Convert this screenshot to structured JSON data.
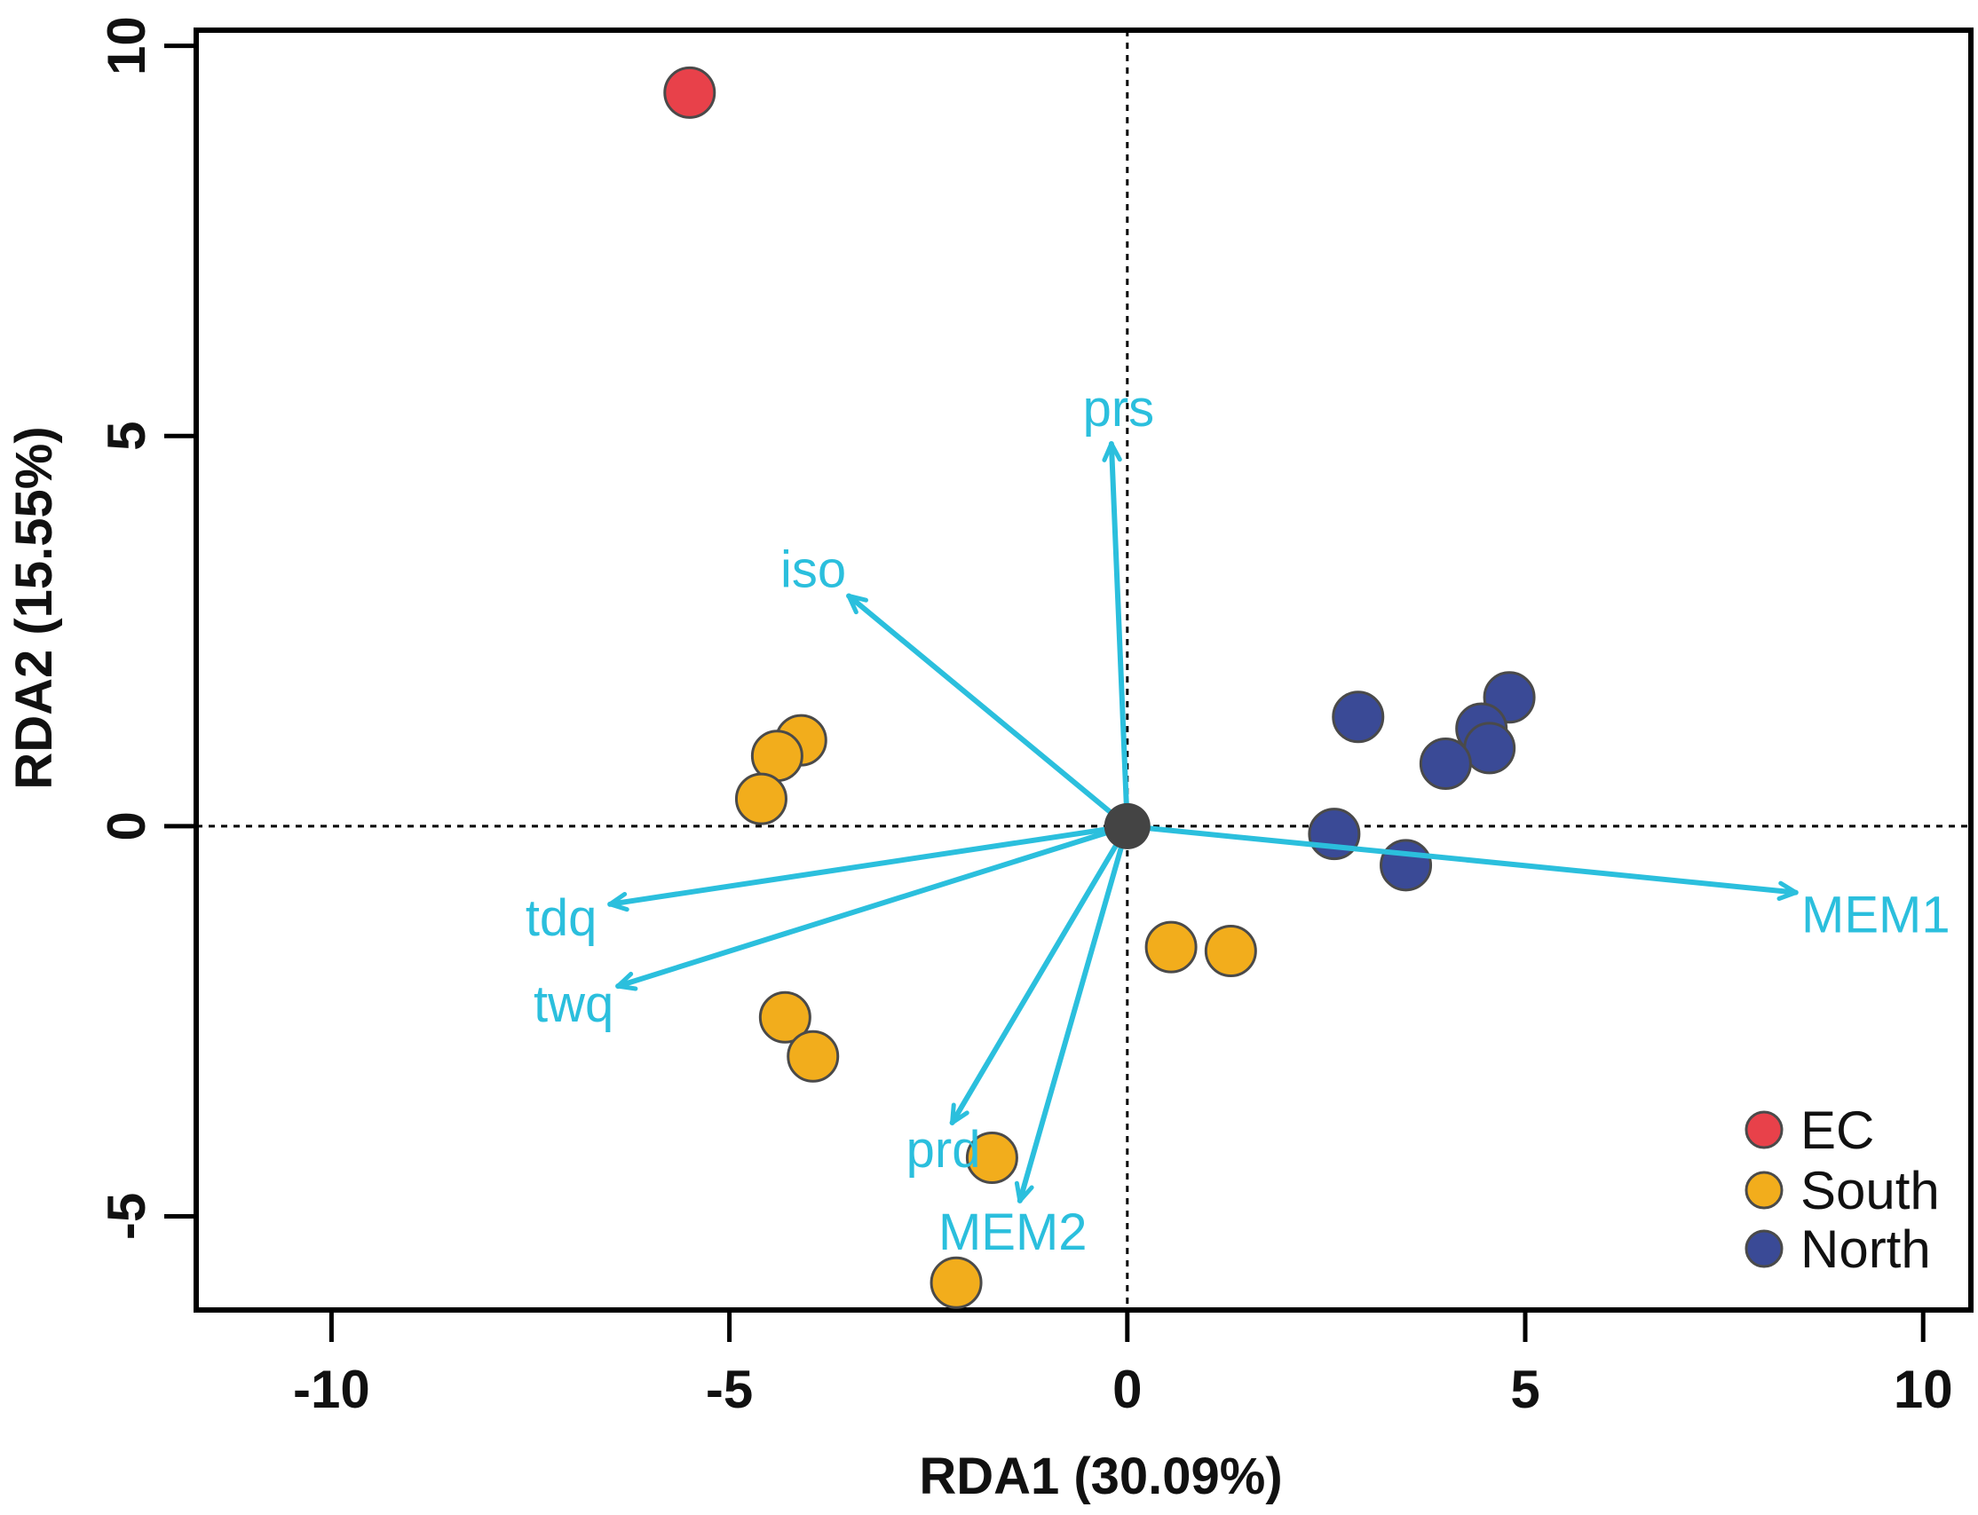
{
  "chart_data": {
    "type": "scatter",
    "subtype": "rda-biplot",
    "xlabel": "RDA1 (30.09%)",
    "ylabel": "RDA2 (15.55%)",
    "xlim": [
      -11.7,
      10.6
    ],
    "ylim": [
      -6.2,
      10.2
    ],
    "x_ticks": [
      -10,
      -5,
      0,
      5,
      10
    ],
    "x_tick_labels": [
      "-10",
      "-5",
      "0",
      "5",
      "10"
    ],
    "y_ticks": [
      -5,
      0,
      5,
      10
    ],
    "y_tick_labels": [
      "-5",
      "0",
      "5",
      "10"
    ],
    "reference_lines": {
      "x": 0,
      "y": 0,
      "style": "dotted"
    },
    "legend": {
      "position": "bottom-right",
      "entries": [
        {
          "label": "EC",
          "color": "#e8414a"
        },
        {
          "label": "South",
          "color": "#f2ad1c"
        },
        {
          "label": "North",
          "color": "#3a4a96"
        }
      ]
    },
    "series": [
      {
        "name": "EC",
        "color": "#e8414a",
        "points": [
          [
            -5.5,
            9.4
          ]
        ]
      },
      {
        "name": "South",
        "color": "#f2ad1c",
        "points": [
          [
            -4.1,
            1.1
          ],
          [
            -4.4,
            0.9
          ],
          [
            -4.6,
            0.35
          ],
          [
            -4.3,
            -2.45
          ],
          [
            -3.95,
            -2.95
          ],
          [
            -1.7,
            -4.25
          ],
          [
            -2.15,
            -5.85
          ],
          [
            0.55,
            -1.55
          ],
          [
            1.3,
            -1.6
          ]
        ]
      },
      {
        "name": "North",
        "color": "#3a4a96",
        "points": [
          [
            2.9,
            1.4
          ],
          [
            4.8,
            1.65
          ],
          [
            4.45,
            1.25
          ],
          [
            4.55,
            1.0
          ],
          [
            4.0,
            0.8
          ],
          [
            2.6,
            -0.1
          ],
          [
            3.5,
            -0.5
          ]
        ]
      }
    ],
    "centroid": {
      "point": [
        0,
        0
      ],
      "color": "#444444"
    },
    "vectors": {
      "color": "#2bbfdd",
      "items": [
        {
          "name": "prs",
          "x": -0.2,
          "y": 4.9
        },
        {
          "name": "iso",
          "x": -3.5,
          "y": 2.95
        },
        {
          "name": "tdq",
          "x": -6.5,
          "y": -1.0
        },
        {
          "name": "twq",
          "x": -6.4,
          "y": -2.05
        },
        {
          "name": "prd",
          "x": -2.2,
          "y": -3.8
        },
        {
          "name": "MEM2",
          "x": -1.35,
          "y": -4.8
        },
        {
          "name": "MEM1",
          "x": 8.4,
          "y": -0.85
        }
      ]
    }
  }
}
